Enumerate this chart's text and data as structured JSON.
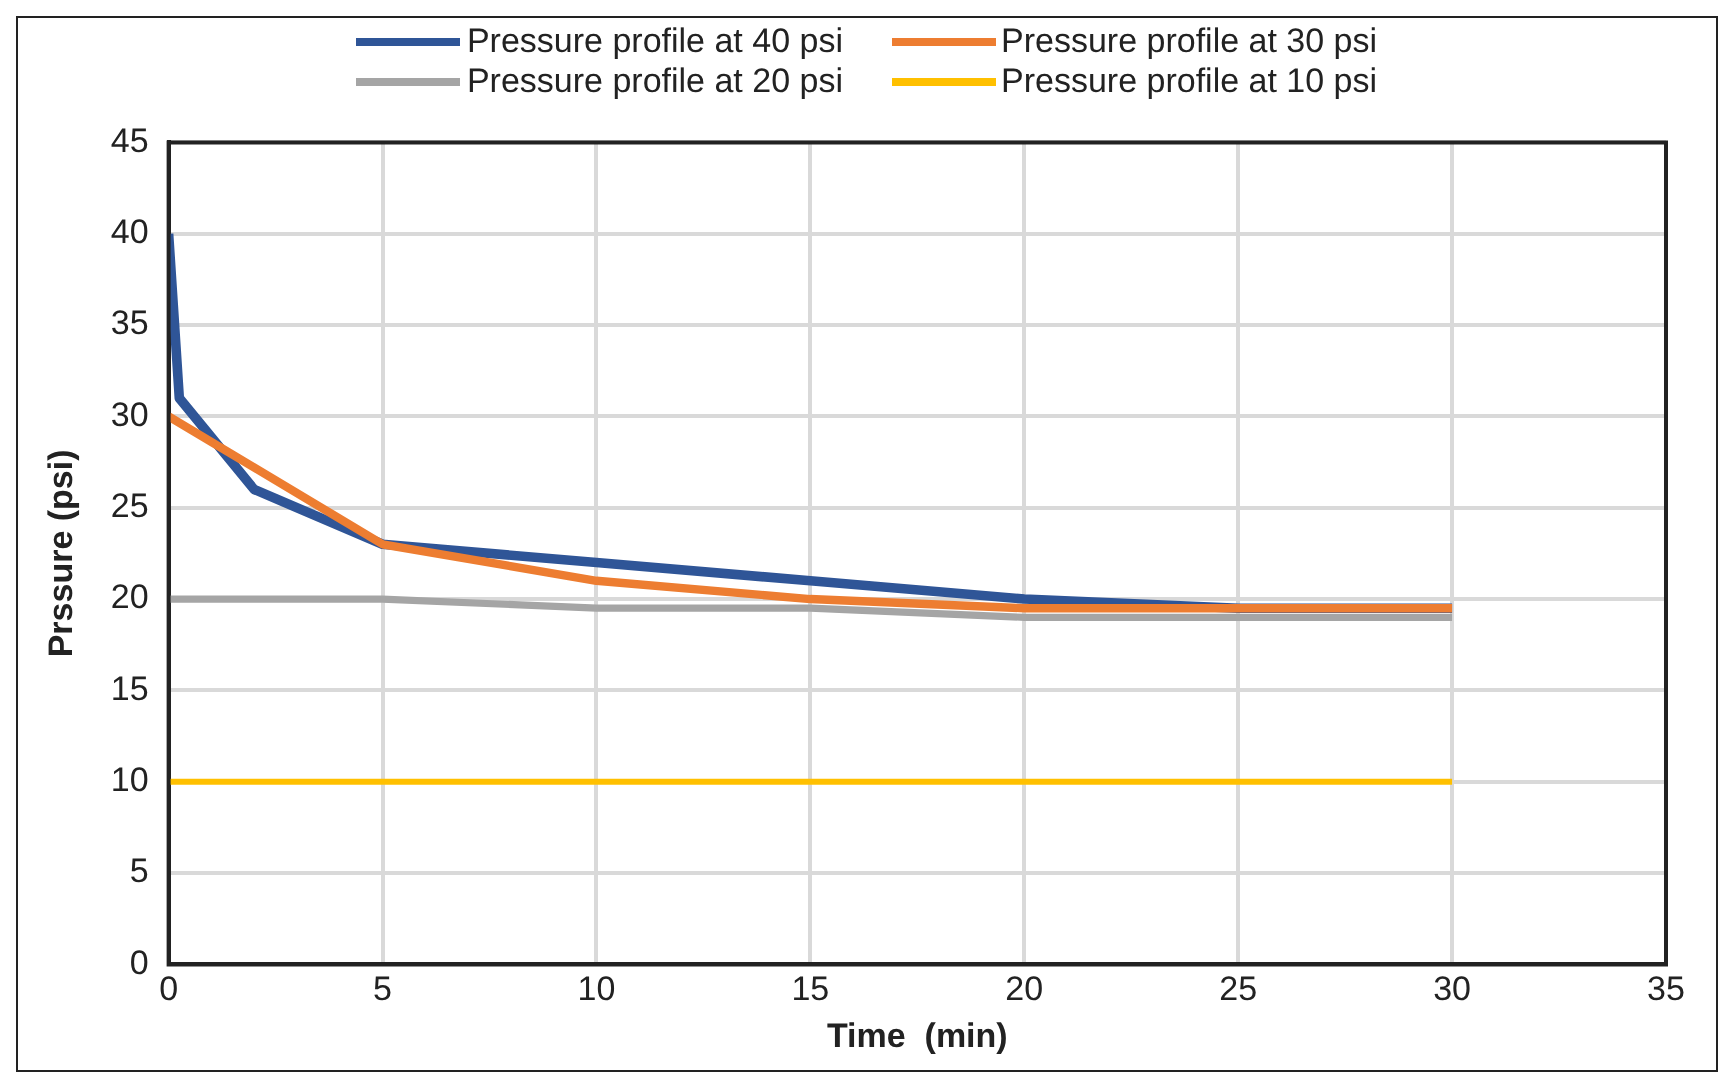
{
  "chart_data": {
    "type": "line",
    "xlabel": "Time  (min)",
    "ylabel": "Prssure (psi)",
    "xlim": [
      0,
      35
    ],
    "xticks": [
      0,
      5,
      10,
      15,
      20,
      25,
      30,
      35
    ],
    "ylim": [
      0,
      45
    ],
    "yticks": [
      0,
      5,
      10,
      15,
      20,
      25,
      30,
      35,
      40,
      45
    ],
    "grid": true,
    "legend": "top",
    "marker": "none",
    "line_style": "solid",
    "series": [
      {
        "name": "Pressure profile at 40 psi",
        "color": "#2f5597",
        "x": [
          0,
          0.25,
          2,
          5,
          10,
          15,
          20,
          25,
          30
        ],
        "values": [
          40,
          31,
          26,
          23,
          22,
          21,
          20,
          19.5,
          19.5
        ]
      },
      {
        "name": "Pressure profile at 30 psi",
        "color": "#ed7d31",
        "x": [
          0,
          5,
          10,
          15,
          20,
          25,
          30
        ],
        "values": [
          30,
          23,
          21,
          20,
          19.5,
          19.5,
          19.5
        ]
      },
      {
        "name": "Pressure profile at 20 psi",
        "color": "#a5a5a5",
        "x": [
          0,
          5,
          10,
          15,
          20,
          25,
          30
        ],
        "values": [
          20,
          20,
          19.5,
          19.5,
          19,
          19,
          19
        ]
      },
      {
        "name": "Pressure profile at 10 psi",
        "color": "#ffc000",
        "x": [
          0,
          30
        ],
        "values": [
          10,
          10
        ]
      }
    ]
  }
}
